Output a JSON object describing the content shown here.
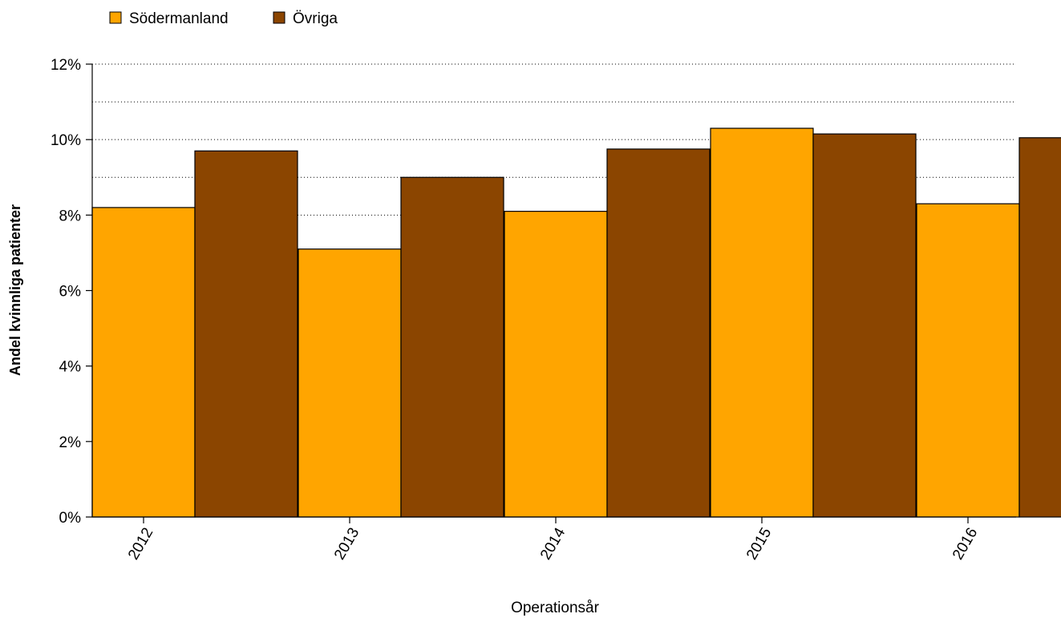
{
  "chart_data": {
    "type": "bar",
    "categories": [
      "2012",
      "2013",
      "2014",
      "2015",
      "2016"
    ],
    "series": [
      {
        "name": "Södermanland",
        "color": "#FFA500",
        "values": [
          8.2,
          7.1,
          8.1,
          10.3,
          8.3
        ]
      },
      {
        "name": "Övriga",
        "color": "#8B4500",
        "values": [
          9.7,
          9.0,
          9.75,
          10.15,
          10.05
        ]
      }
    ],
    "xlabel": "Operationsår",
    "ylabel": "Andel kvinnliga patienter",
    "ylim": [
      0,
      12
    ],
    "yticks": [
      0,
      2,
      4,
      6,
      8,
      10,
      12
    ],
    "ytick_labels": [
      "0%",
      "2%",
      "4%",
      "6%",
      "8%",
      "10%",
      "12%"
    ],
    "grid": true,
    "legend_position": "top-left"
  }
}
